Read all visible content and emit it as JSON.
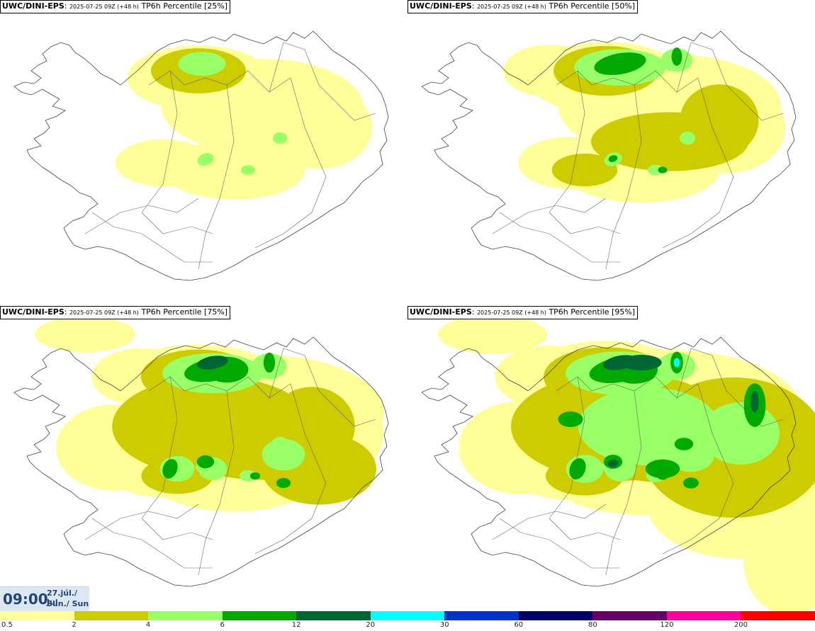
{
  "panels": [
    {
      "model": "UWC/DINI-EPS",
      "run": "2025-07-25 09Z (+48 h)",
      "field": "TP6h Percentile [25%]",
      "percentile": 25,
      "intensity": 0.25
    },
    {
      "model": "UWC/DINI-EPS",
      "run": "2025-07-25 09Z (+48 h)",
      "field": "TP6h Percentile [50%]",
      "percentile": 50,
      "intensity": 0.5
    },
    {
      "model": "UWC/DINI-EPS",
      "run": "2025-07-25 09Z (+48 h)",
      "field": "TP6h Percentile [75%]",
      "percentile": 75,
      "intensity": 0.75
    },
    {
      "model": "UWC/DINI-EPS",
      "run": "2025-07-25 09Z (+48 h)",
      "field": "TP6h Percentile [95%]",
      "percentile": 95,
      "intensity": 1.0
    }
  ],
  "valid_time": {
    "clock": "09:00",
    "date_line1": "27.júl./ Jul",
    "date_line2": "Sun./ Sun"
  },
  "colorbar": {
    "colors": [
      "#ffff99",
      "#cccc00",
      "#99ff66",
      "#00aa00",
      "#006633",
      "#00ffff",
      "#0033cc",
      "#000066",
      "#660066",
      "#ff0099",
      "#ff0000"
    ],
    "labels": [
      "0.5",
      "2",
      "4",
      "6",
      "12",
      "20",
      "30",
      "60",
      "80",
      "120",
      "200"
    ]
  },
  "levels": {
    "light_yellow": "#ffff99",
    "olive": "#cccc00",
    "light_green": "#99ff66",
    "green": "#00aa00",
    "dark_green": "#006633",
    "cyan": "#00ffff"
  }
}
